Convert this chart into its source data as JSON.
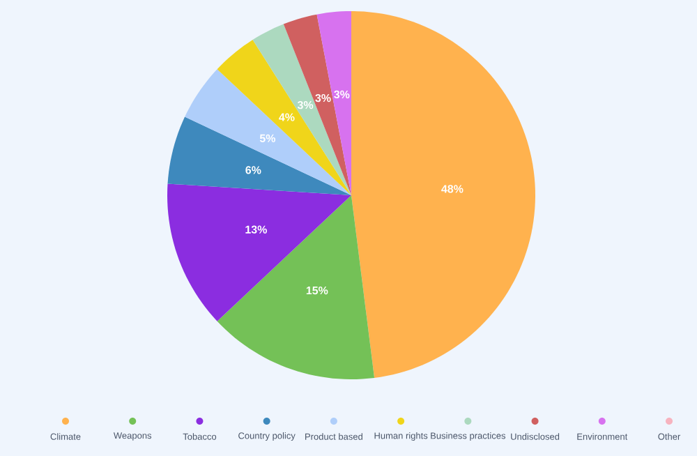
{
  "chart_data": {
    "type": "pie",
    "categories": [
      "Climate",
      "Weapons",
      "Tobacco",
      "Country policy",
      "Product based",
      "Human rights",
      "Business practices",
      "Undisclosed",
      "Environment",
      "Other"
    ],
    "values": [
      48,
      15,
      13,
      6,
      5,
      4,
      3,
      3,
      3,
      0
    ],
    "colors": [
      "#ffb24e",
      "#74c157",
      "#8b2de0",
      "#3e89bd",
      "#afcefa",
      "#f0d51a",
      "#acd9bf",
      "#d06060",
      "#d772ef",
      "#f7b3bf"
    ],
    "value_labels": [
      "48%",
      "15%",
      "13%",
      "6%",
      "5%",
      "4%",
      "3%",
      "3%",
      "3%",
      null
    ],
    "legend": "bottom"
  }
}
